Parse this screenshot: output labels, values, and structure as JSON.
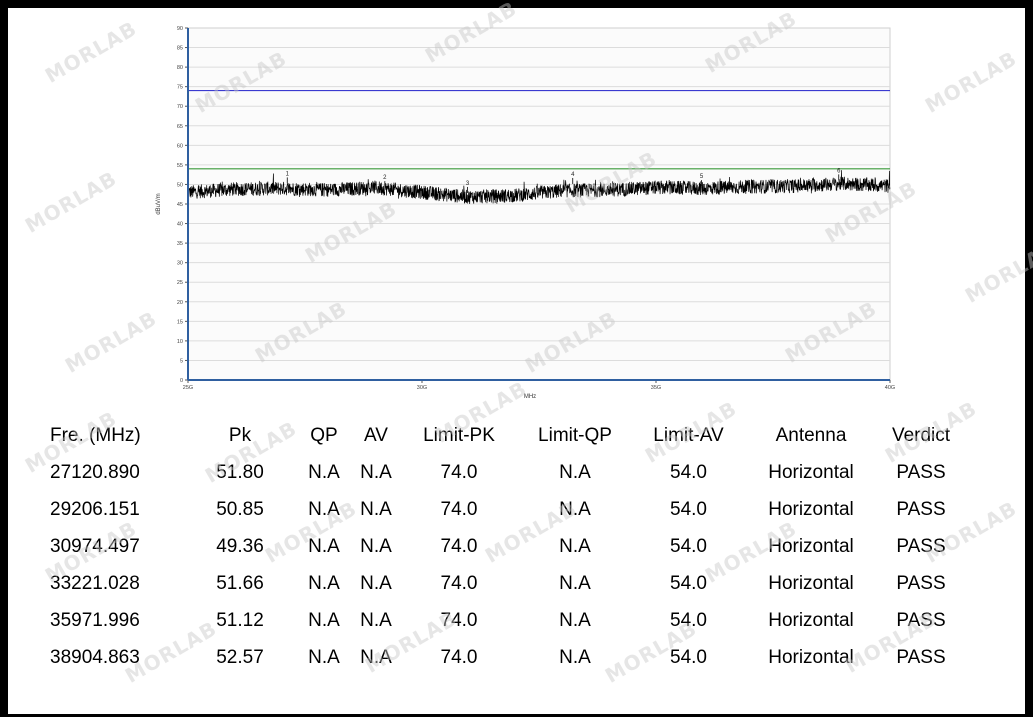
{
  "chart_data": {
    "type": "line",
    "title": "",
    "xlabel": "MHz",
    "ylabel": "dBuV/m",
    "xlim": [
      25000,
      40000
    ],
    "ylim": [
      0,
      90
    ],
    "x_ticks": [
      {
        "value": 25000,
        "label": "25G"
      },
      {
        "value": 30000,
        "label": "30G"
      },
      {
        "value": 35000,
        "label": "35G"
      },
      {
        "value": 40000,
        "label": "40G"
      }
    ],
    "y_ticks": [
      0,
      5,
      10,
      15,
      20,
      25,
      30,
      35,
      40,
      45,
      50,
      55,
      60,
      65,
      70,
      75,
      80,
      85,
      90
    ],
    "grid": true,
    "limit_lines": [
      {
        "value": 74.0,
        "color": "#3b3bd0"
      },
      {
        "value": 54.0,
        "color": "#3a9a3a"
      }
    ],
    "trace_baseline": [
      {
        "x": 25000,
        "y": 48.0
      },
      {
        "x": 26000,
        "y": 48.8
      },
      {
        "x": 27000,
        "y": 49.0
      },
      {
        "x": 28000,
        "y": 48.6
      },
      {
        "x": 29000,
        "y": 49.2
      },
      {
        "x": 30000,
        "y": 48.0
      },
      {
        "x": 31000,
        "y": 46.8
      },
      {
        "x": 32000,
        "y": 47.2
      },
      {
        "x": 33000,
        "y": 48.4
      },
      {
        "x": 34000,
        "y": 48.6
      },
      {
        "x": 35000,
        "y": 49.2
      },
      {
        "x": 36000,
        "y": 49.0
      },
      {
        "x": 37000,
        "y": 49.4
      },
      {
        "x": 38000,
        "y": 49.6
      },
      {
        "x": 39000,
        "y": 50.2
      },
      {
        "x": 40000,
        "y": 49.6
      }
    ],
    "markers": [
      {
        "label": "1",
        "x": 27120.89,
        "y": 51.8
      },
      {
        "label": "2",
        "x": 29206.151,
        "y": 50.85
      },
      {
        "label": "3",
        "x": 30974.497,
        "y": 49.36
      },
      {
        "label": "4",
        "x": 33221.028,
        "y": 51.66
      },
      {
        "label": "5",
        "x": 35971.996,
        "y": 51.12
      },
      {
        "label": "6",
        "x": 38904.863,
        "y": 52.57
      }
    ],
    "colors": {
      "trace": "#000000",
      "grid": "#dcdcdc",
      "axis": "#2f5fa0"
    }
  },
  "table": {
    "headers": [
      "Fre. (MHz)",
      "Pk",
      "QP",
      "AV",
      "Limit-PK",
      "Limit-QP",
      "Limit-AV",
      "Antenna",
      "Verdict"
    ],
    "rows": [
      [
        "27120.890",
        "51.80",
        "N.A",
        "N.A",
        "74.0",
        "N.A",
        "54.0",
        "Horizontal",
        "PASS"
      ],
      [
        "29206.151",
        "50.85",
        "N.A",
        "N.A",
        "74.0",
        "N.A",
        "54.0",
        "Horizontal",
        "PASS"
      ],
      [
        "30974.497",
        "49.36",
        "N.A",
        "N.A",
        "74.0",
        "N.A",
        "54.0",
        "Horizontal",
        "PASS"
      ],
      [
        "33221.028",
        "51.66",
        "N.A",
        "N.A",
        "74.0",
        "N.A",
        "54.0",
        "Horizontal",
        "PASS"
      ],
      [
        "35971.996",
        "51.12",
        "N.A",
        "N.A",
        "74.0",
        "N.A",
        "54.0",
        "Horizontal",
        "PASS"
      ],
      [
        "38904.863",
        "52.57",
        "N.A",
        "N.A",
        "74.0",
        "N.A",
        "54.0",
        "Horizontal",
        "PASS"
      ]
    ]
  },
  "watermark": {
    "text": "MORLAB"
  }
}
